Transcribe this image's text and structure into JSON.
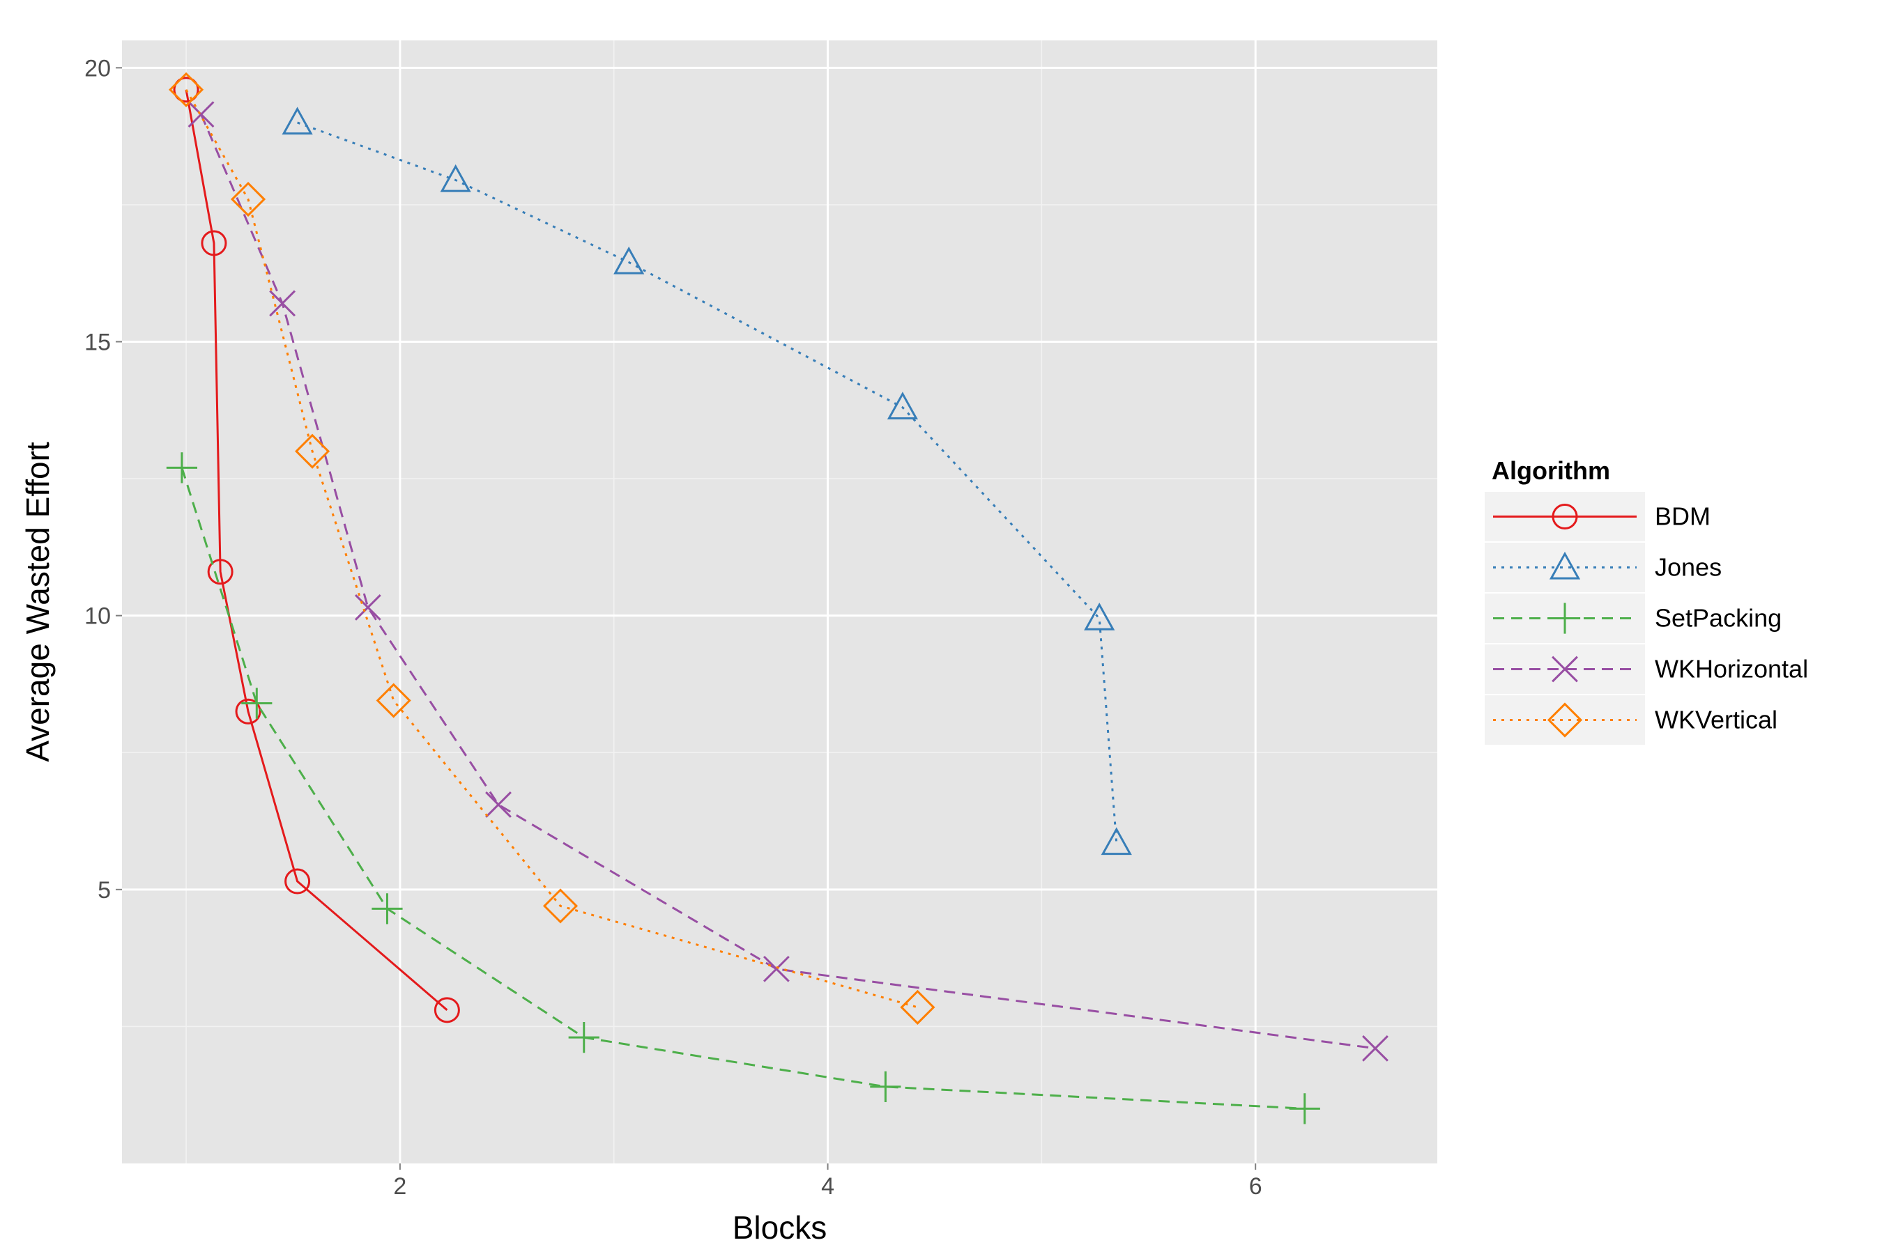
{
  "chart_data": {
    "type": "line",
    "title": "",
    "xlabel": "Blocks",
    "ylabel": "Average Wasted Effort",
    "xlim": [
      0.7,
      6.85
    ],
    "ylim": [
      0,
      20.5
    ],
    "x_ticks": [
      2,
      4,
      6
    ],
    "y_ticks": [
      5,
      10,
      15,
      20
    ],
    "x_tick_labels": [
      "2",
      "4",
      "6"
    ],
    "y_tick_labels": [
      "5",
      "10",
      "15",
      "20"
    ],
    "grid": true,
    "legend": {
      "title": "Algorithm",
      "position": "right"
    },
    "series": [
      {
        "name": "BDM",
        "color": "#e41a1c",
        "marker": "circle",
        "line": "solid",
        "points": [
          [
            1.0,
            19.6
          ],
          [
            1.13,
            16.8
          ],
          [
            1.16,
            10.8
          ],
          [
            1.29,
            8.25
          ],
          [
            1.52,
            5.15
          ],
          [
            2.22,
            2.8
          ]
        ]
      },
      {
        "name": "Jones",
        "color": "#377eb8",
        "marker": "triangle",
        "line": "dotted",
        "points": [
          [
            1.52,
            19.0
          ],
          [
            2.26,
            17.95
          ],
          [
            3.07,
            16.45
          ],
          [
            4.35,
            13.8
          ],
          [
            5.27,
            9.95
          ],
          [
            5.35,
            5.85
          ]
        ]
      },
      {
        "name": "SetPacking",
        "color": "#4daf4a",
        "marker": "plus",
        "line": "dashed",
        "points": [
          [
            0.98,
            12.7
          ],
          [
            1.33,
            8.4
          ],
          [
            1.94,
            4.65
          ],
          [
            2.86,
            2.3
          ],
          [
            4.27,
            1.4
          ],
          [
            6.23,
            1.0
          ]
        ]
      },
      {
        "name": "WKHorizontal",
        "color": "#984ea3",
        "marker": "x",
        "line": "dashed",
        "points": [
          [
            1.07,
            19.15
          ],
          [
            1.45,
            15.7
          ],
          [
            1.85,
            10.15
          ],
          [
            2.46,
            6.55
          ],
          [
            3.76,
            3.55
          ],
          [
            6.56,
            2.1
          ]
        ]
      },
      {
        "name": "WKVertical",
        "color": "#ff7f00",
        "marker": "diamond",
        "line": "dotted",
        "points": [
          [
            1.0,
            19.6
          ],
          [
            1.29,
            17.6
          ],
          [
            1.59,
            13.0
          ],
          [
            1.97,
            8.45
          ],
          [
            2.75,
            4.7
          ],
          [
            4.42,
            2.85
          ]
        ]
      }
    ]
  }
}
